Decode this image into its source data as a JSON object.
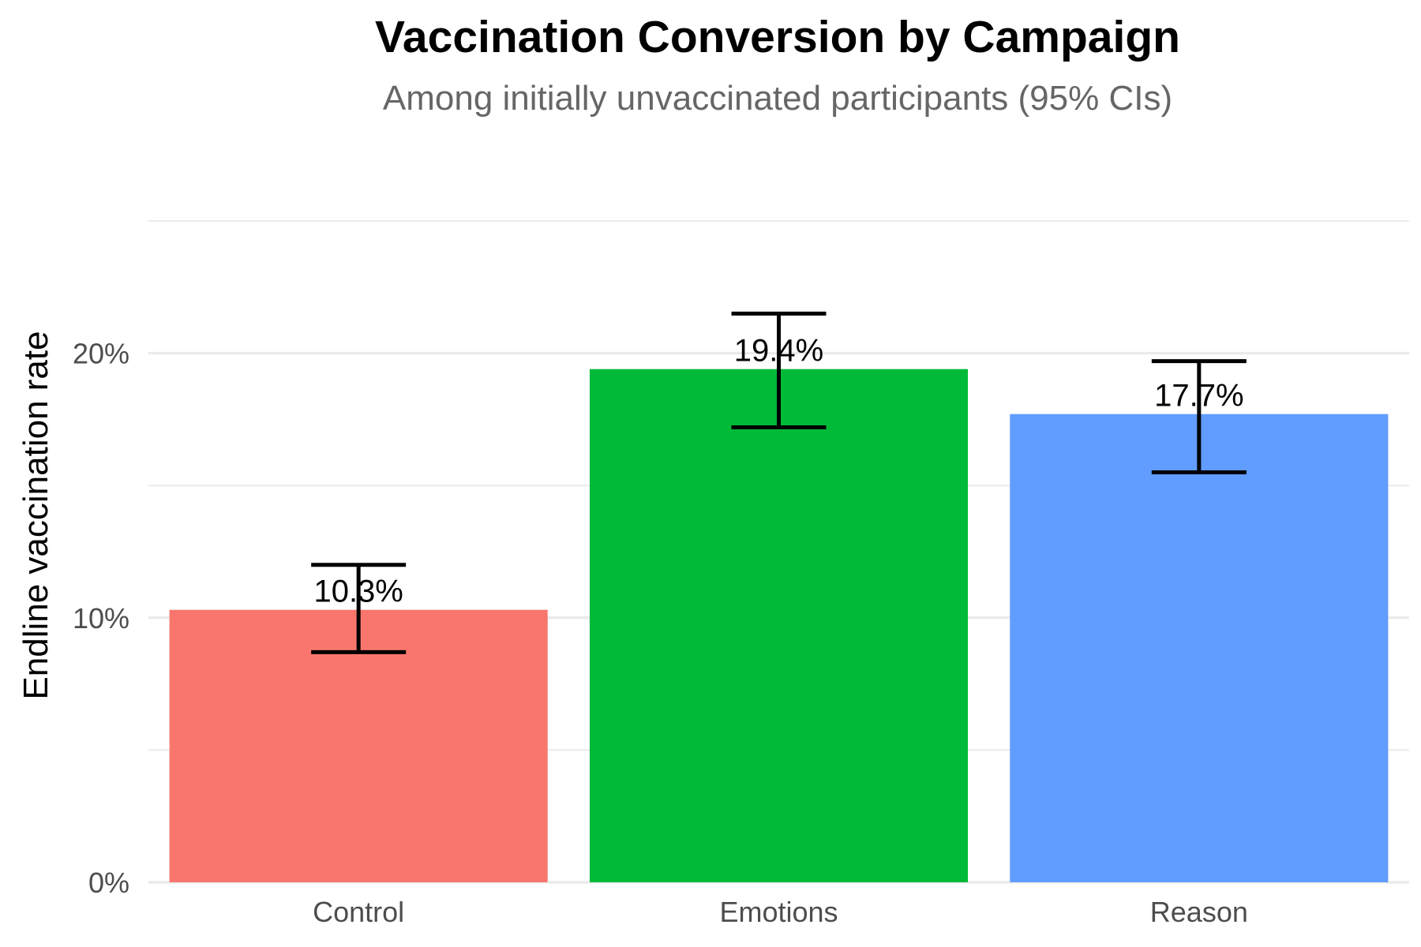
{
  "chart_data": {
    "type": "bar",
    "title": "Vaccination Conversion by Campaign",
    "subtitle": "Among initially unvaccinated participants (95% CIs)",
    "xlabel": "",
    "ylabel": "Endline vaccination rate",
    "categories": [
      "Control",
      "Emotions",
      "Reason"
    ],
    "values": [
      0.103,
      0.194,
      0.177
    ],
    "value_labels": [
      "10.3%",
      "19.4%",
      "17.7%"
    ],
    "ci_lower": [
      0.087,
      0.172,
      0.155
    ],
    "ci_upper": [
      0.12,
      0.215,
      0.197
    ],
    "colors": [
      "#F8766D",
      "#00BA38",
      "#619CFF"
    ],
    "ylim": [
      0,
      0.25
    ],
    "yticks": [
      0,
      0.1,
      0.2
    ],
    "ytick_labels": [
      "0%",
      "10%",
      "20%"
    ],
    "grid": true,
    "legend": "none"
  }
}
